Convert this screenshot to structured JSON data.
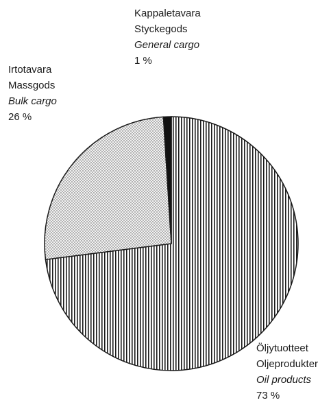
{
  "chart_data": {
    "type": "pie",
    "categories": [
      "Oil products",
      "Bulk cargo",
      "General cargo"
    ],
    "categories_fi": [
      "Öljytuotteet",
      "Irtotavara",
      "Kappaletavara"
    ],
    "categories_sv": [
      "Oljeprodukter",
      "Massgods",
      "Styckegods"
    ],
    "values": [
      73,
      26,
      1
    ],
    "value_labels": [
      "73 %",
      "26 %",
      "1 %"
    ],
    "colors": [
      "#1a1a1a",
      "#555555",
      "#111111"
    ],
    "patterns": [
      "vertical-lines",
      "dots",
      "solid"
    ]
  }
}
